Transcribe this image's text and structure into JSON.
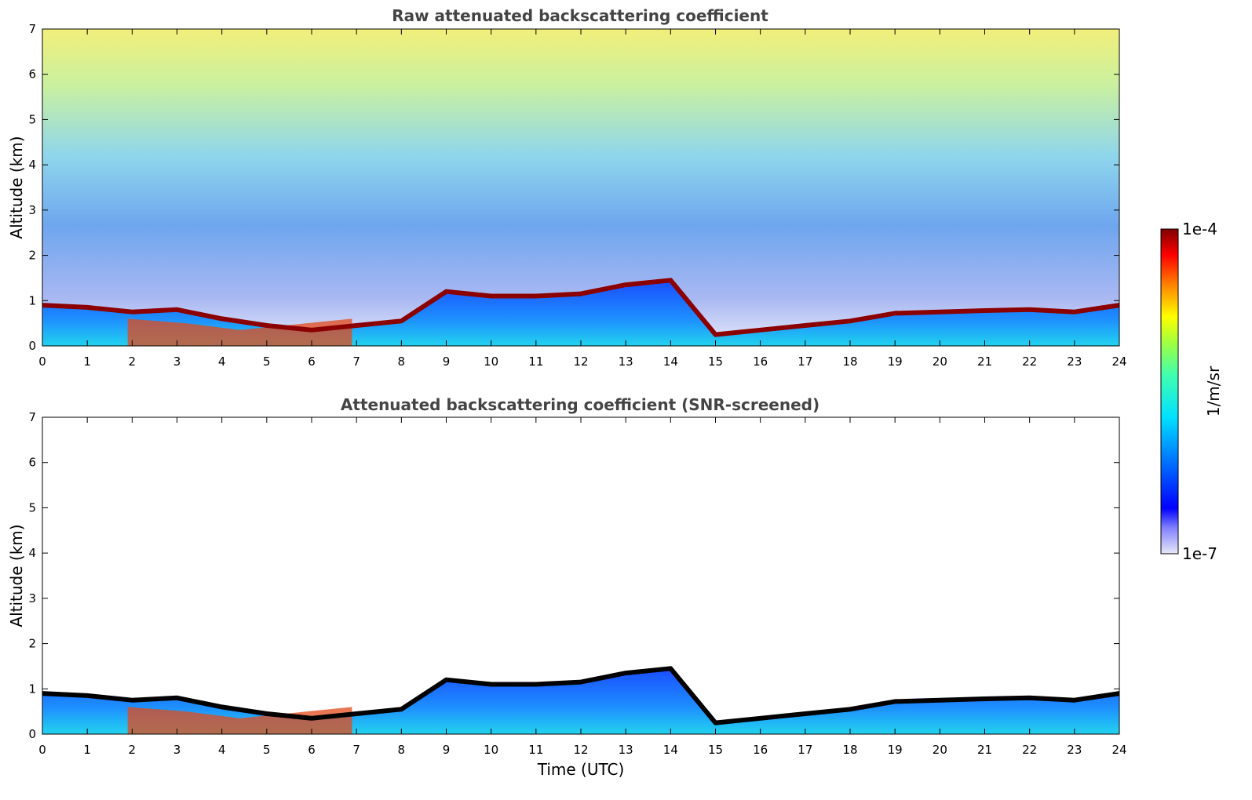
{
  "chart_data": [
    {
      "type": "heatmap",
      "title": "Raw attenuated backscattering coefficient",
      "xlabel": "",
      "ylabel": "Altitude (km)",
      "xlim": [
        0,
        24
      ],
      "ylim": [
        0,
        7
      ],
      "x_ticks": [
        "0",
        "1",
        "2",
        "3",
        "4",
        "5",
        "6",
        "7",
        "8",
        "9",
        "10",
        "11",
        "12",
        "13",
        "14",
        "15",
        "16",
        "17",
        "18",
        "19",
        "20",
        "21",
        "22",
        "23",
        "24"
      ],
      "y_ticks": [
        "0",
        "1",
        "2",
        "3",
        "4",
        "5",
        "6",
        "7"
      ],
      "layer_top_km": [
        0.9,
        0.85,
        0.75,
        0.8,
        0.6,
        0.45,
        0.35,
        0.45,
        0.55,
        1.2,
        1.1,
        1.1,
        1.15,
        1.35,
        1.45,
        0.25,
        0.35,
        0.45,
        0.55,
        0.72,
        0.75,
        0.78,
        0.8,
        0.75,
        0.9
      ],
      "background_noise": "high"
    },
    {
      "type": "heatmap",
      "title": "Attenuated backscattering coefficient (SNR-screened)",
      "xlabel": "Time (UTC)",
      "ylabel": "Altitude (km)",
      "xlim": [
        0,
        24
      ],
      "ylim": [
        0,
        7
      ],
      "x_ticks": [
        "0",
        "1",
        "2",
        "3",
        "4",
        "5",
        "6",
        "7",
        "8",
        "9",
        "10",
        "11",
        "12",
        "13",
        "14",
        "15",
        "16",
        "17",
        "18",
        "19",
        "20",
        "21",
        "22",
        "23",
        "24"
      ],
      "y_ticks": [
        "0",
        "1",
        "2",
        "3",
        "4",
        "5",
        "6",
        "7"
      ],
      "layer_top_km": [
        0.9,
        0.85,
        0.75,
        0.8,
        0.6,
        0.45,
        0.35,
        0.45,
        0.55,
        1.2,
        1.1,
        1.1,
        1.15,
        1.35,
        1.45,
        0.25,
        0.35,
        0.45,
        0.55,
        0.72,
        0.75,
        0.78,
        0.8,
        0.75,
        0.9
      ],
      "background_noise": "screened"
    }
  ],
  "colorbar": {
    "label": "1/m/sr",
    "max_label": "1e-4",
    "min_label": "1e-7"
  },
  "colors": {
    "title": "#444444",
    "low": "#0000ff",
    "high": "#7f0000",
    "layer_raw": "#8b0000",
    "layer_screened": "#000000"
  }
}
